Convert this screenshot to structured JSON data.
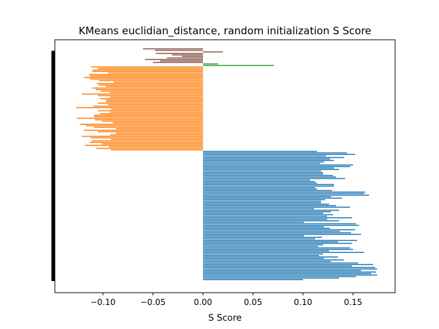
{
  "chart_data": {
    "type": "bar",
    "orientation": "horizontal",
    "title": "KMeans euclidian_distance, random initialization S Score",
    "xlabel": "S Score",
    "ylabel": "",
    "xlim": [
      -0.148,
      0.192
    ],
    "xticks": [
      -0.1,
      -0.05,
      0.0,
      0.05,
      0.1,
      0.15
    ],
    "xtick_labels": [
      "−0.10",
      "−0.05",
      "0.00",
      "0.05",
      "0.10",
      "0.15"
    ],
    "yticks_shown": false,
    "grid": false,
    "legend": false,
    "series": [
      {
        "color": "#1f77b4",
        "values": [
          0.1,
          0.136,
          0.153,
          0.174,
          0.168,
          0.173,
          0.158,
          0.174,
          0.172,
          0.149,
          0.17,
          0.155,
          0.128,
          0.141,
          0.121,
          0.135,
          0.116,
          0.12,
          0.161,
          0.126,
          0.15,
          0.147,
          0.115,
          0.12,
          0.149,
          0.135,
          0.154,
          0.112,
          0.119,
          0.101,
          0.158,
          0.148,
          0.137,
          0.152,
          0.127,
          0.121,
          0.156,
          0.153,
          0.101,
          0.136,
          0.124,
          0.149,
          0.124,
          0.13,
          0.12,
          0.128,
          0.136,
          0.111,
          0.147,
          0.133,
          0.126,
          0.118,
          0.118,
          0.122,
          0.139,
          0.128,
          0.166,
          0.161,
          0.162,
          0.129,
          0.114,
          0.112,
          0.131,
          0.131,
          0.114,
          0.112,
          0.107,
          0.142,
          0.133,
          0.13,
          0.12,
          0.12,
          0.118,
          0.136,
          0.131,
          0.147,
          0.15,
          0.117,
          0.121,
          0.131,
          0.127,
          0.141,
          0.123,
          0.152,
          0.144,
          0.114
        ]
      },
      {
        "color": "#ff7f0e",
        "values": [
          -0.092,
          -0.107,
          -0.094,
          -0.118,
          -0.101,
          -0.113,
          -0.111,
          -0.092,
          -0.112,
          -0.121,
          -0.093,
          -0.087,
          -0.105,
          -0.119,
          -0.087,
          -0.109,
          -0.117,
          -0.123,
          -0.09,
          -0.101,
          -0.108,
          -0.126,
          -0.109,
          -0.109,
          -0.103,
          -0.093,
          -0.105,
          -0.092,
          -0.127,
          -0.11,
          -0.095,
          -0.105,
          -0.097,
          -0.097,
          -0.103,
          -0.093,
          -0.105,
          -0.121,
          -0.093,
          -0.102,
          -0.107,
          -0.111,
          -0.097,
          -0.104,
          -0.106,
          -0.089,
          -0.104,
          -0.113,
          -0.119,
          -0.113,
          -0.114,
          -0.095,
          -0.111,
          -0.11,
          -0.105,
          -0.112
        ]
      },
      {
        "color": "#2ca02c",
        "values": [
          0.071,
          0.015
        ]
      },
      {
        "color": "#8c564b",
        "values": [
          -0.05,
          -0.043,
          -0.058,
          -0.036,
          -0.021,
          -0.031,
          -0.047,
          0.02,
          -0.048,
          -0.06
        ]
      }
    ]
  },
  "silhouette_bar_color": "#000000"
}
